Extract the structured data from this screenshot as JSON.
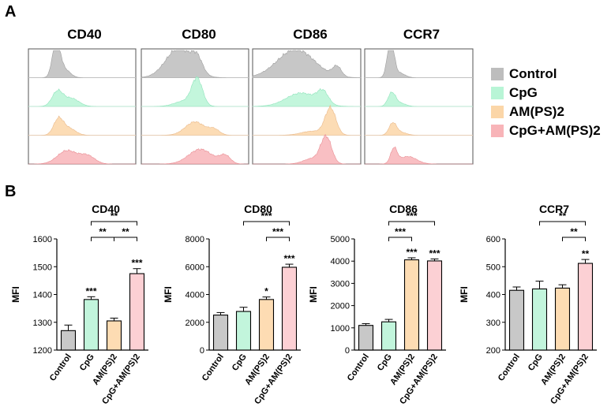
{
  "panels": {
    "a": "A",
    "b": "B"
  },
  "legend": [
    {
      "label": "Control",
      "color": "#bdbdbd"
    },
    {
      "label": "CpG",
      "color": "#b8f5d6"
    },
    {
      "label": "AM(PS)2",
      "color": "#fbd6a8"
    },
    {
      "label": "CpG+AM(PS)2",
      "color": "#f8b4b8"
    }
  ],
  "chart_data": [
    {
      "type": "histogram-stack",
      "title": "CD40",
      "series": [
        "Control",
        "CpG",
        "AM(PS)2",
        "CpG+AM(PS)2"
      ]
    },
    {
      "type": "histogram-stack",
      "title": "CD80",
      "series": [
        "Control",
        "CpG",
        "AM(PS)2",
        "CpG+AM(PS)2"
      ]
    },
    {
      "type": "histogram-stack",
      "title": "CD86",
      "series": [
        "Control",
        "CpG",
        "AM(PS)2",
        "CpG+AM(PS)2"
      ]
    },
    {
      "type": "histogram-stack",
      "title": "CCR7",
      "series": [
        "Control",
        "CpG",
        "AM(PS)2",
        "CpG+AM(PS)2"
      ]
    },
    {
      "type": "bar",
      "title": "CD40",
      "ylabel": "MFI",
      "categories": [
        "Control",
        "CpG",
        "AM(PS)2",
        "CpG+AM(PS)2"
      ],
      "values": [
        1270,
        1382,
        1305,
        1475
      ],
      "errors": [
        20,
        10,
        10,
        18
      ],
      "ylim": [
        1200,
        1600
      ],
      "yticks": [
        "1200",
        "1300",
        "1400",
        "1500",
        "1600"
      ],
      "colors": [
        "#c8c8c8",
        "#c2f5dc",
        "#fddcb3",
        "#fcd0d4"
      ],
      "bar_labels": [
        "",
        "***",
        "",
        "***"
      ],
      "comparisons": [
        {
          "from": 1,
          "to": 3,
          "level": 2,
          "label": "**"
        },
        {
          "from": 1,
          "to": 2,
          "level": 1,
          "label": "**"
        },
        {
          "from": 2,
          "to": 3,
          "level": 1,
          "label": "**"
        }
      ]
    },
    {
      "type": "bar",
      "title": "CD80",
      "ylabel": "MFI",
      "categories": [
        "Control",
        "CpG",
        "AM(PS)2",
        "CpG+AM(PS)2"
      ],
      "values": [
        2520,
        2780,
        3640,
        5960
      ],
      "errors": [
        180,
        300,
        180,
        220
      ],
      "ylim": [
        0,
        8000
      ],
      "yticks": [
        "0",
        "2000",
        "4000",
        "6000",
        "8000"
      ],
      "colors": [
        "#c8c8c8",
        "#c2f5dc",
        "#fddcb3",
        "#fcd0d4"
      ],
      "bar_labels": [
        "",
        "",
        "*",
        "***"
      ],
      "comparisons": [
        {
          "from": 1,
          "to": 3,
          "level": 2,
          "label": "***"
        },
        {
          "from": 2,
          "to": 3,
          "level": 1,
          "label": "***"
        }
      ]
    },
    {
      "type": "bar",
      "title": "CD86",
      "ylabel": "MFI",
      "categories": [
        "Control",
        "CpG",
        "AM(PS)2",
        "CpG+AM(PS)2"
      ],
      "values": [
        1110,
        1270,
        4060,
        4010
      ],
      "errors": [
        80,
        110,
        90,
        90
      ],
      "ylim": [
        0,
        5000
      ],
      "yticks": [
        "0",
        "1000",
        "2000",
        "3000",
        "4000",
        "5000"
      ],
      "colors": [
        "#c8c8c8",
        "#c2f5dc",
        "#fddcb3",
        "#fcd0d4"
      ],
      "bar_labels": [
        "",
        "",
        "***",
        "***"
      ],
      "comparisons": [
        {
          "from": 1,
          "to": 3,
          "level": 2,
          "label": "***"
        },
        {
          "from": 1,
          "to": 2,
          "level": 1,
          "label": "***"
        }
      ]
    },
    {
      "type": "bar",
      "title": "CCR7",
      "ylabel": "MFI",
      "categories": [
        "Control",
        "CpG",
        "AM(PS)2",
        "CpG+AM(PS)2"
      ],
      "values": [
        415,
        420,
        423,
        512
      ],
      "errors": [
        12,
        28,
        12,
        14
      ],
      "ylim": [
        200,
        600
      ],
      "yticks": [
        "200",
        "300",
        "400",
        "500",
        "600"
      ],
      "colors": [
        "#c8c8c8",
        "#c2f5dc",
        "#fddcb3",
        "#fcd0d4"
      ],
      "bar_labels": [
        "",
        "",
        "",
        "**"
      ],
      "comparisons": [
        {
          "from": 1,
          "to": 3,
          "level": 2,
          "label": "**"
        },
        {
          "from": 2,
          "to": 3,
          "level": 1,
          "label": "**"
        }
      ]
    }
  ]
}
